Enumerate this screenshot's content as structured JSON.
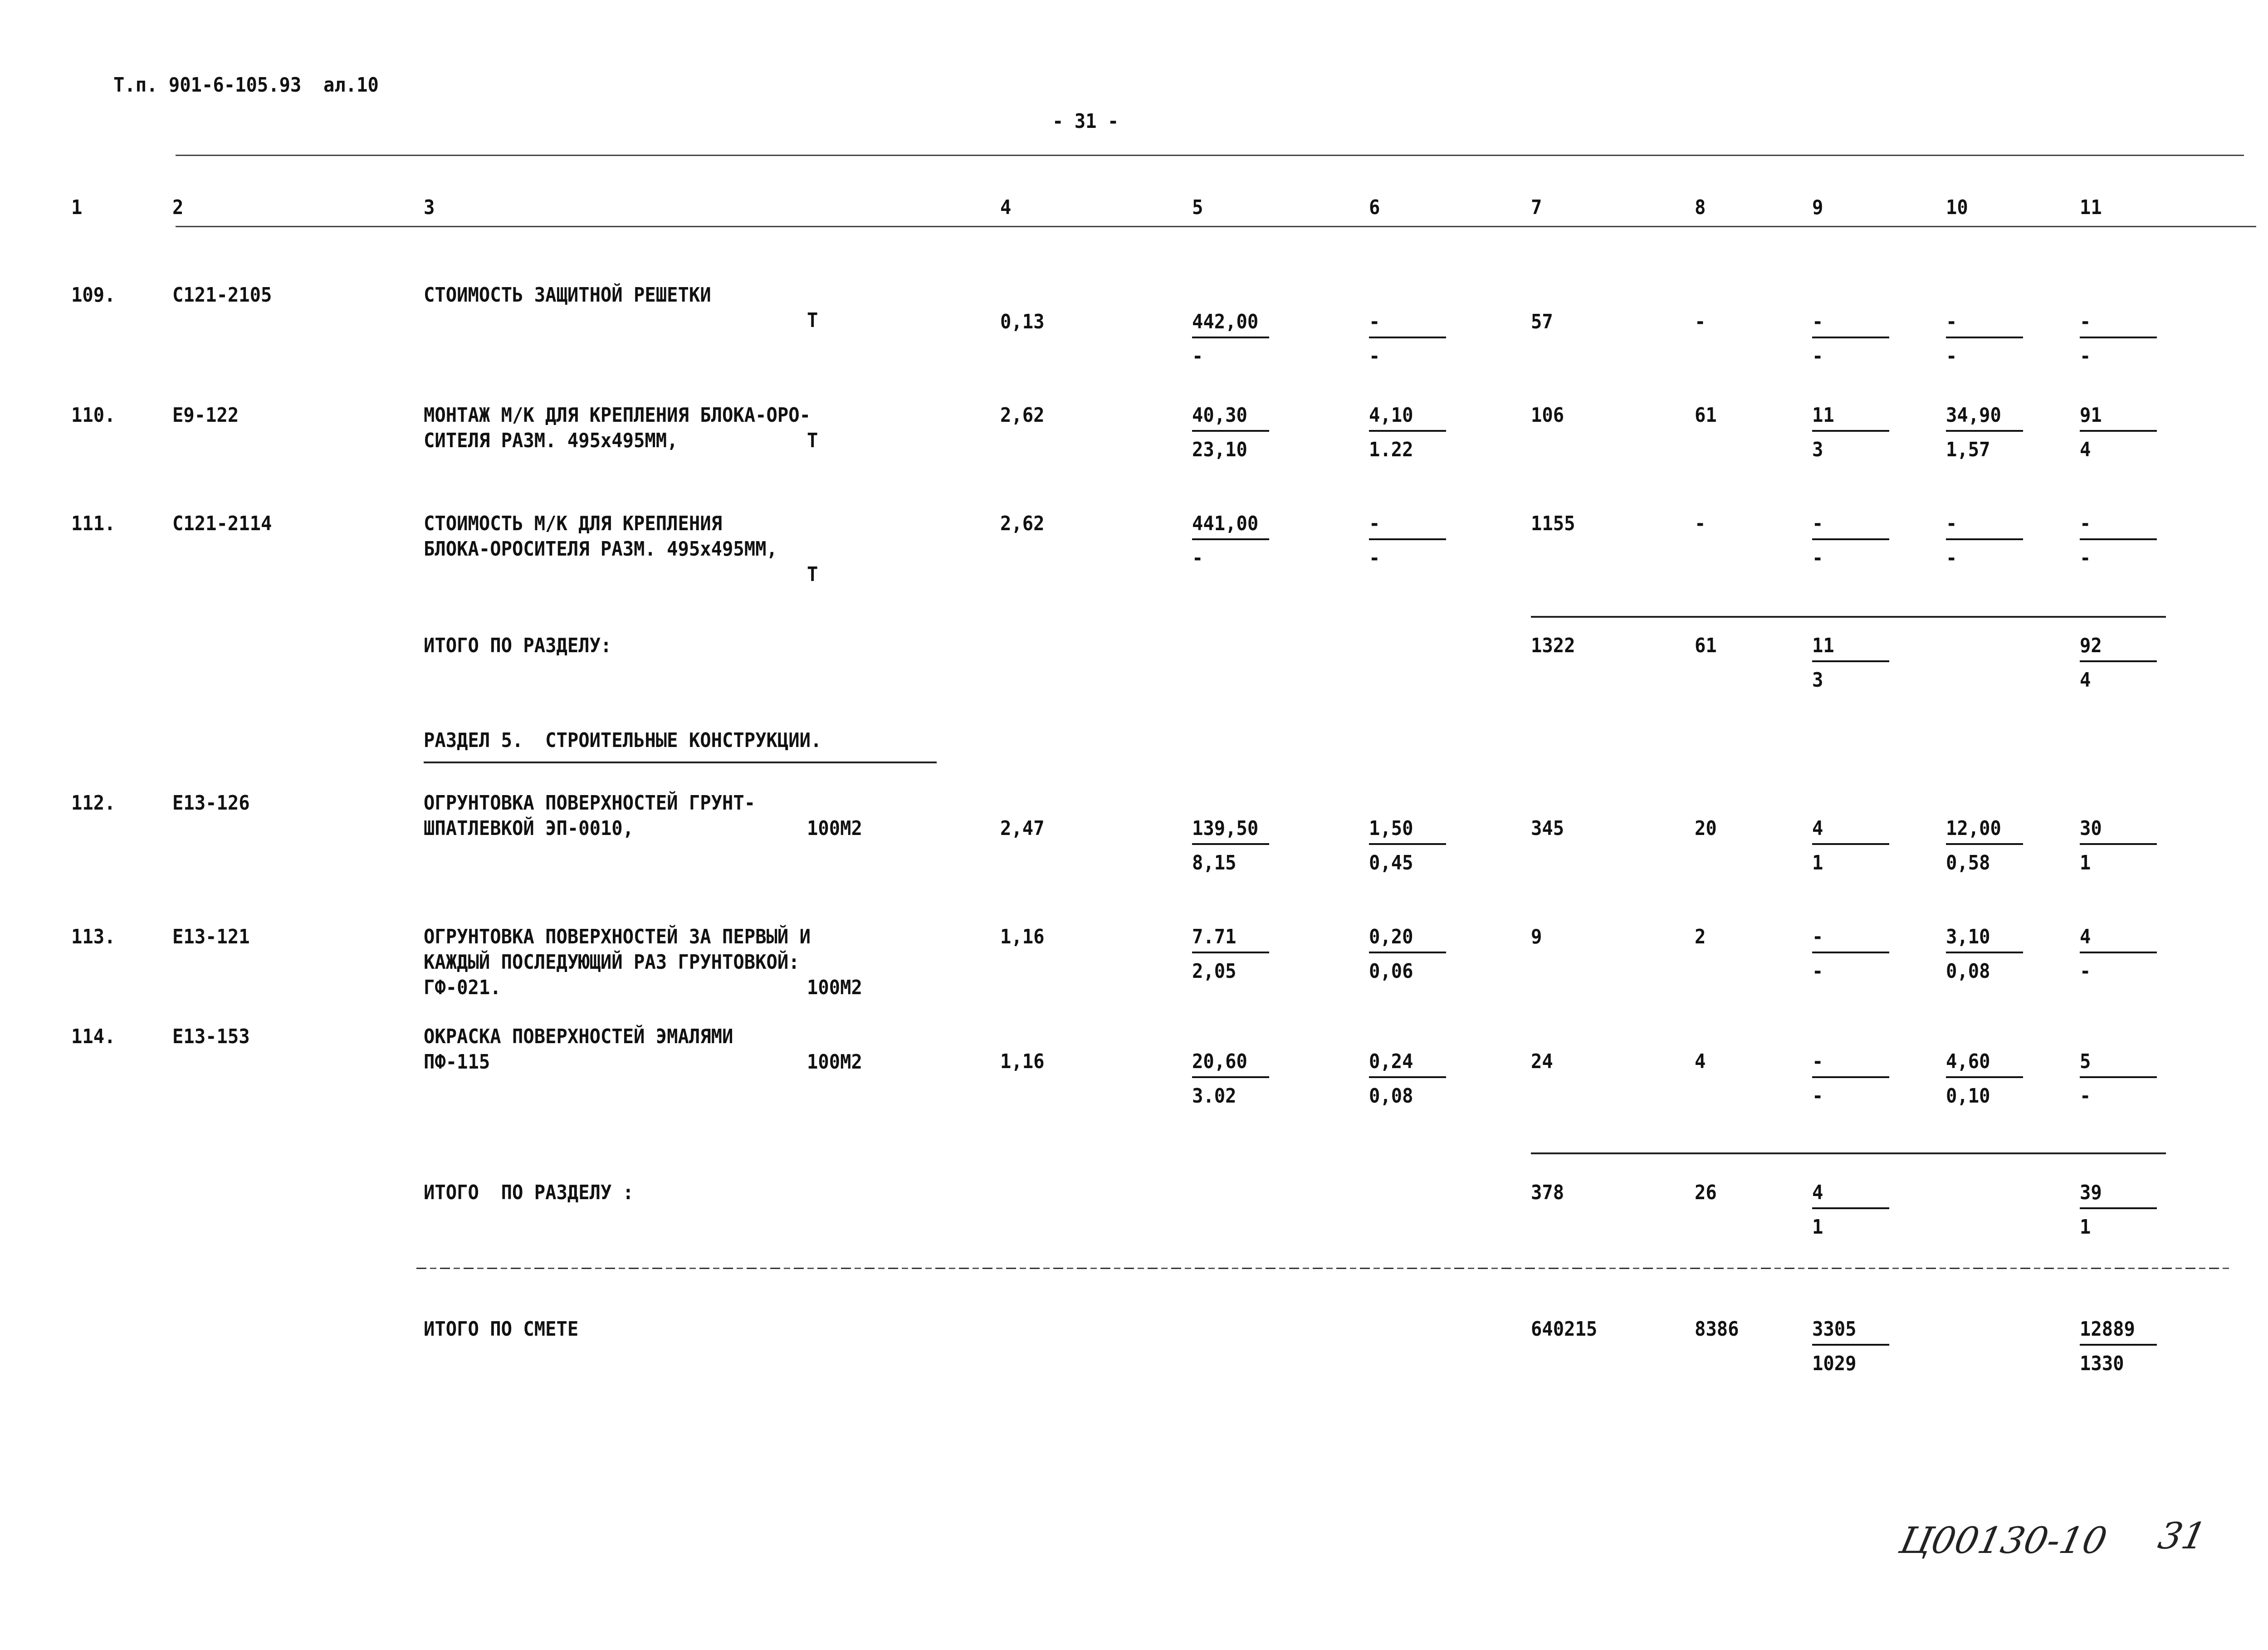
{
  "header": {
    "doc_ref": "Т.п. 901-6-105.93  ал.10",
    "page_number": "- 31 -"
  },
  "columns": [
    "1",
    "2",
    "3",
    "4",
    "5",
    "6",
    "7",
    "8",
    "9",
    "10",
    "11"
  ],
  "rows": [
    {
      "no": "109.",
      "code": "С121-2105",
      "desc": [
        "СТОИМОСТЬ ЗАЩИТНОЙ РЕШЕТКИ",
        ""
      ],
      "unit": "Т",
      "qty": "0,13",
      "c5": {
        "n": "442,00",
        "d": "-"
      },
      "c6": {
        "n": "-",
        "d": "-"
      },
      "c7": "57",
      "c8": "-",
      "c9": {
        "n": "-",
        "d": "-"
      },
      "c10": {
        "n": "-",
        "d": "-"
      },
      "c11": {
        "n": "-",
        "d": "-"
      }
    },
    {
      "no": "110.",
      "code": "Е9-122",
      "desc": [
        "МОНТАЖ М/К ДЛЯ КРЕПЛЕНИЯ БЛОКА-ОРО-",
        "СИТЕЛЯ РАЗМ. 495х495ММ,"
      ],
      "unit": "Т",
      "qty": "2,62",
      "c5": {
        "n": "40,30",
        "d": "23,10"
      },
      "c6": {
        "n": "4,10",
        "d": "1.22"
      },
      "c7": "106",
      "c8": "61",
      "c9": {
        "n": "11",
        "d": "3"
      },
      "c10": {
        "n": "34,90",
        "d": "1,57"
      },
      "c11": {
        "n": "91",
        "d": "4"
      }
    },
    {
      "no": "111.",
      "code": "С121-2114",
      "desc": [
        "СТОИМОСТЬ М/К ДЛЯ КРЕПЛЕНИЯ",
        "БЛОКА-ОРОСИТЕЛЯ РАЗМ. 495х495ММ,",
        ""
      ],
      "unit": "Т",
      "qty": "2,62",
      "c5": {
        "n": "441,00",
        "d": "-"
      },
      "c6": {
        "n": "-",
        "d": "-"
      },
      "c7": "1155",
      "c8": "-",
      "c9": {
        "n": "-",
        "d": "-"
      },
      "c10": {
        "n": "-",
        "d": "-"
      },
      "c11": {
        "n": "-",
        "d": "-"
      }
    },
    {
      "no": "112.",
      "code": "Е13-126",
      "desc": [
        "ОГРУНТОВКА ПОВЕРХНОСТЕЙ ГРУНТ-",
        "ШПАТЛЕВКОЙ ЭП-0010,"
      ],
      "unit": "100М2",
      "qty": "2,47",
      "c5": {
        "n": "139,50",
        "d": "8,15"
      },
      "c6": {
        "n": "1,50",
        "d": "0,45"
      },
      "c7": "345",
      "c8": "20",
      "c9": {
        "n": "4",
        "d": "1"
      },
      "c10": {
        "n": "12,00",
        "d": "0,58"
      },
      "c11": {
        "n": "30",
        "d": "1"
      }
    },
    {
      "no": "113.",
      "code": "Е13-121",
      "desc": [
        "ОГРУНТОВКА ПОВЕРХНОСТЕЙ ЗА ПЕРВЫЙ И",
        "КАЖДЫЙ ПОСЛЕДУЮЩИЙ РАЗ ГРУНТОВКОЙ:",
        "ГФ-021."
      ],
      "unit": "100М2",
      "qty": "1,16",
      "c5": {
        "n": "7.71",
        "d": "2,05"
      },
      "c6": {
        "n": "0,20",
        "d": "0,06"
      },
      "c7": "9",
      "c8": "2",
      "c9": {
        "n": "-",
        "d": "-"
      },
      "c10": {
        "n": "3,10",
        "d": "0,08"
      },
      "c11": {
        "n": "4",
        "d": "-"
      }
    },
    {
      "no": "114.",
      "code": "Е13-153",
      "desc": [
        "ОКРАСКА ПОВЕРХНОСТЕЙ ЭМАЛЯМИ",
        "ПФ-115"
      ],
      "unit": "100М2",
      "qty": "1,16",
      "c5": {
        "n": "20,60",
        "d": "3.02"
      },
      "c6": {
        "n": "0,24",
        "d": "0,08"
      },
      "c7": "24",
      "c8": "4",
      "c9": {
        "n": "-",
        "d": "-"
      },
      "c10": {
        "n": "4,60",
        "d": "0,10"
      },
      "c11": {
        "n": "5",
        "d": "-"
      }
    }
  ],
  "totals": [
    {
      "label": "ИТОГО ПО РАЗДЕЛУ:",
      "c7": "1322",
      "c8": "61",
      "c9": {
        "n": "11",
        "d": "3"
      },
      "c11": {
        "n": "92",
        "d": "4"
      }
    },
    {
      "label": "ИТОГО  ПО РАЗДЕЛУ :",
      "c7": "378",
      "c8": "26",
      "c9": {
        "n": "4",
        "d": "1"
      },
      "c11": {
        "n": "39",
        "d": "1"
      }
    },
    {
      "label": "ИТОГО ПО СМЕТЕ",
      "c7": "640215",
      "c8": "8386",
      "c9": {
        "n": "3305",
        "d": "1029"
      },
      "c11": {
        "n": "12889",
        "d": "1330"
      }
    }
  ],
  "section_heading": "РАЗДЕЛ 5.  СТРОИТЕЛЬНЫЕ КОНСТРУКЦИИ.",
  "handwritten": {
    "code": "Ц00130-10",
    "page": "31"
  }
}
